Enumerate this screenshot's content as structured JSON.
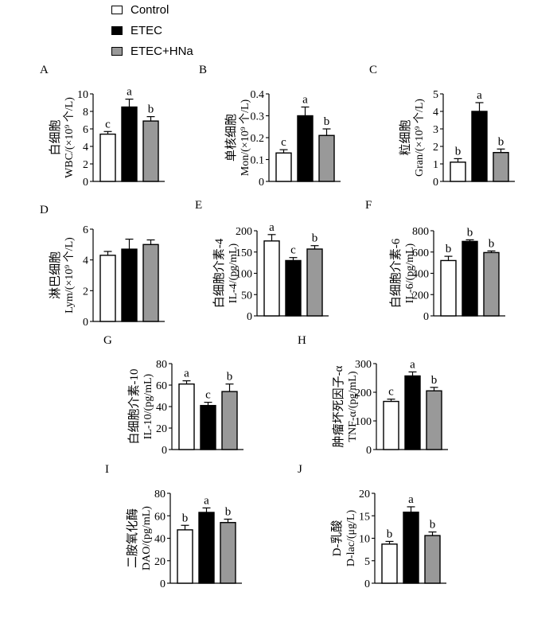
{
  "colors": {
    "Control": "#ffffff",
    "ETEC": "#000000",
    "ETEC+HNa": "#999999"
  },
  "legend": [
    {
      "label": "Control",
      "color": "#ffffff"
    },
    {
      "label": "ETEC",
      "color": "#000000"
    },
    {
      "label": "ETEC+HNa",
      "color": "#999999"
    }
  ],
  "chart_data": [
    {
      "id": "A",
      "type": "bar",
      "panel": "A",
      "ylabel": [
        "白细胞",
        "WBC/(×10⁹ 个/L)"
      ],
      "categories": [
        "Control",
        "ETEC",
        "ETEC+HNa"
      ],
      "values": [
        5.4,
        8.5,
        6.9
      ],
      "errors": [
        0.3,
        0.9,
        0.5
      ],
      "letters": [
        "c",
        "a",
        "b"
      ],
      "ylim": [
        0,
        10
      ],
      "yticks": [
        "0",
        "2",
        "4",
        "6",
        "8",
        "10"
      ]
    },
    {
      "id": "B",
      "type": "bar",
      "panel": "B",
      "ylabel": [
        "单核细胞",
        "Mon/(×10⁹ 个/L)"
      ],
      "categories": [
        "Control",
        "ETEC",
        "ETEC+HNa"
      ],
      "values": [
        0.13,
        0.3,
        0.21
      ],
      "errors": [
        0.015,
        0.04,
        0.03
      ],
      "letters": [
        "c",
        "a",
        "b"
      ],
      "ylim": [
        0,
        0.4
      ],
      "yticks": [
        "0",
        "0.1",
        "0.2",
        "0.3",
        "0.4"
      ]
    },
    {
      "id": "C",
      "type": "bar",
      "panel": "C",
      "ylabel": [
        "粒细胞",
        "Gran/(×10⁹ 个/L)"
      ],
      "categories": [
        "Control",
        "ETEC",
        "ETEC+HNa"
      ],
      "values": [
        1.1,
        4.0,
        1.65
      ],
      "errors": [
        0.2,
        0.5,
        0.2
      ],
      "letters": [
        "b",
        "a",
        "b"
      ],
      "ylim": [
        0,
        5
      ],
      "yticks": [
        "0",
        "1",
        "2",
        "3",
        "4",
        "5"
      ]
    },
    {
      "id": "D",
      "type": "bar",
      "panel": "D",
      "ylabel": [
        "淋巴细胞",
        "Lym/(×10⁹ 个/L)"
      ],
      "categories": [
        "Control",
        "ETEC",
        "ETEC+HNa"
      ],
      "values": [
        4.3,
        4.7,
        5.0
      ],
      "errors": [
        0.25,
        0.65,
        0.3
      ],
      "letters": [
        "",
        "",
        ""
      ],
      "ylim": [
        0,
        6
      ],
      "yticks": [
        "0",
        "2",
        "4",
        "6"
      ]
    },
    {
      "id": "E",
      "type": "bar",
      "panel": "E",
      "ylabel": [
        "白细胞介素-4",
        "IL-4/(pg/mL)"
      ],
      "categories": [
        "Control",
        "ETEC",
        "ETEC+HNa"
      ],
      "values": [
        176,
        130,
        157
      ],
      "errors": [
        15,
        7,
        8
      ],
      "letters": [
        "a",
        "c",
        "b"
      ],
      "ylim": [
        0,
        200
      ],
      "yticks": [
        "0",
        "50",
        "100",
        "150",
        "200"
      ]
    },
    {
      "id": "F",
      "type": "bar",
      "panel": "F",
      "ylabel": [
        "白细胞介素-6",
        "IL-6/(pg/mL)"
      ],
      "categories": [
        "Control",
        "ETEC",
        "ETEC+HNa"
      ],
      "values": [
        520,
        700,
        595
      ],
      "errors": [
        40,
        15,
        15
      ],
      "letters": [
        "b",
        "b",
        "b"
      ],
      "ylim": [
        0,
        800
      ],
      "yticks": [
        "0",
        "200",
        "400",
        "600",
        "800"
      ]
    },
    {
      "id": "G",
      "type": "bar",
      "panel": "G",
      "ylabel": [
        "白细胞介素-10",
        "IL-10/(pg/mL)"
      ],
      "categories": [
        "Control",
        "ETEC",
        "ETEC+HNa"
      ],
      "values": [
        61,
        41,
        54
      ],
      "errors": [
        3,
        3,
        7
      ],
      "letters": [
        "a",
        "c",
        "b"
      ],
      "ylim": [
        0,
        80
      ],
      "yticks": [
        "0",
        "20",
        "40",
        "60",
        "80"
      ]
    },
    {
      "id": "H",
      "type": "bar",
      "panel": "H",
      "ylabel": [
        "肿瘤坏死因子-α",
        "TNF-α/(pg/mL)"
      ],
      "categories": [
        "Control",
        "ETEC",
        "ETEC+HNa"
      ],
      "values": [
        168,
        257,
        205
      ],
      "errors": [
        8,
        14,
        12
      ],
      "letters": [
        "c",
        "a",
        "b"
      ],
      "ylim": [
        0,
        300
      ],
      "yticks": [
        "0",
        "100",
        "200",
        "300"
      ]
    },
    {
      "id": "I",
      "type": "bar",
      "panel": "I",
      "ylabel": [
        "二胺氧化酶",
        "DAO/(pg/mL)"
      ],
      "categories": [
        "Control",
        "ETEC",
        "ETEC+HNa"
      ],
      "values": [
        47.5,
        63,
        54
      ],
      "errors": [
        4,
        4,
        3
      ],
      "letters": [
        "b",
        "a",
        "b"
      ],
      "ylim": [
        0,
        80
      ],
      "yticks": [
        "0",
        "20",
        "40",
        "60",
        "80"
      ]
    },
    {
      "id": "J",
      "type": "bar",
      "panel": "J",
      "ylabel": [
        "D-乳酸",
        "D-lac/(μg/L)"
      ],
      "categories": [
        "Control",
        "ETEC",
        "ETEC+HNa"
      ],
      "values": [
        8.7,
        15.8,
        10.6
      ],
      "errors": [
        0.6,
        1.2,
        0.8
      ],
      "letters": [
        "b",
        "a",
        "b"
      ],
      "ylim": [
        0,
        20
      ],
      "yticks": [
        "0",
        "5",
        "10",
        "15",
        "20"
      ]
    }
  ]
}
